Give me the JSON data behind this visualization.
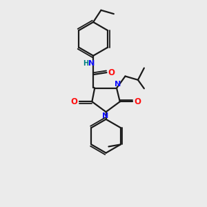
{
  "background_color": "#ebebeb",
  "bond_color": "#1a1a1a",
  "nitrogen_color": "#1010ff",
  "oxygen_color": "#ff1010",
  "nh_color": "#008080",
  "figsize": [
    3.0,
    3.0
  ],
  "dpi": 100,
  "xlim": [
    0,
    10
  ],
  "ylim": [
    0,
    10
  ]
}
